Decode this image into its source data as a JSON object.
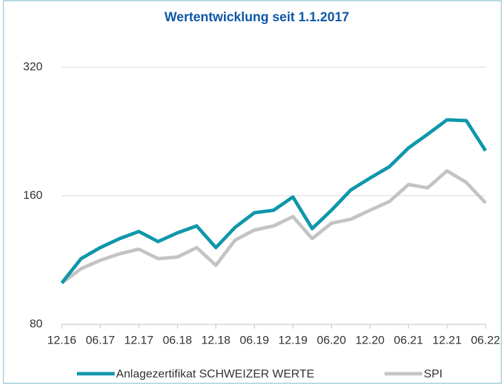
{
  "chart_data": {
    "type": "line",
    "title": "Wertentwicklung seit 1.1.2017",
    "categories": [
      "12.16",
      null,
      "06.17",
      null,
      "12.17",
      null,
      "06.18",
      null,
      "12.18",
      null,
      "06.19",
      null,
      "12.19",
      null,
      "06.20",
      null,
      "12.20",
      null,
      "06.21",
      null,
      "12.21",
      null,
      "06.22"
    ],
    "series": [
      {
        "name": "Anlagezertifikat SCHWEIZER WERTE",
        "color": "#0f97ab",
        "values": [
          100,
          114,
          121,
          127,
          132,
          125,
          131,
          136,
          121,
          135,
          146,
          148,
          159,
          134,
          148,
          165,
          176,
          187,
          207,
          223,
          241,
          240,
          204
        ]
      },
      {
        "name": "SPI",
        "color": "#c3c3c3",
        "values": [
          100,
          108,
          113,
          117,
          120,
          114,
          115,
          121,
          110,
          126,
          133,
          136,
          143,
          127,
          138,
          141,
          148,
          155,
          170,
          167,
          183,
          172,
          154
        ]
      }
    ],
    "ylim": [
      80,
      320
    ],
    "yticks": [
      80,
      160,
      320
    ],
    "log_y": true,
    "grid": true,
    "legend": "bottom"
  }
}
